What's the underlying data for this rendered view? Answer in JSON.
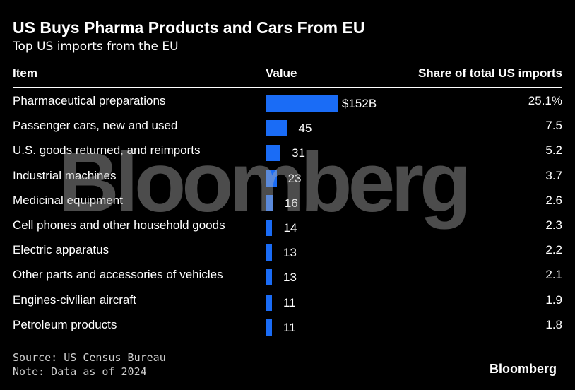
{
  "header": {
    "title": "US Buys Pharma Products and Cars From EU",
    "subtitle": "Top US imports from the EU"
  },
  "columns": {
    "item": "Item",
    "value": "Value",
    "share": "Share of total US imports"
  },
  "chart_data": {
    "type": "bar",
    "orientation": "horizontal",
    "title": "US Buys Pharma Products and Cars From EU",
    "subtitle": "Top US imports from the EU",
    "value_unit": "billion USD",
    "categories": [
      "Pharmaceutical preparations",
      "Passenger cars, new and used",
      "U.S. goods returned, and reimports",
      "Industrial machines",
      "Medicinal equipment",
      "Cell phones and other household goods",
      "Electric apparatus",
      "Other parts and accessories of vehicles",
      "Engines-civilian aircraft",
      "Petroleum products"
    ],
    "values": [
      152,
      45,
      31,
      23,
      16,
      14,
      13,
      13,
      11,
      11
    ],
    "value_labels": [
      "$152B",
      "45",
      "31",
      "23",
      "16",
      "14",
      "13",
      "13",
      "11",
      "11"
    ],
    "shares": [
      "25.1%",
      "7.5",
      "5.2",
      "3.7",
      "2.6",
      "2.3",
      "2.2",
      "2.1",
      "1.9",
      "1.8"
    ],
    "bar_color": "#1a6cf6",
    "xlim": [
      0,
      152
    ]
  },
  "footer": {
    "source": "Source: US Census Bureau",
    "note": "Note: Data as of 2024",
    "logo": "Bloomberg"
  },
  "watermark": "Bloomberg"
}
